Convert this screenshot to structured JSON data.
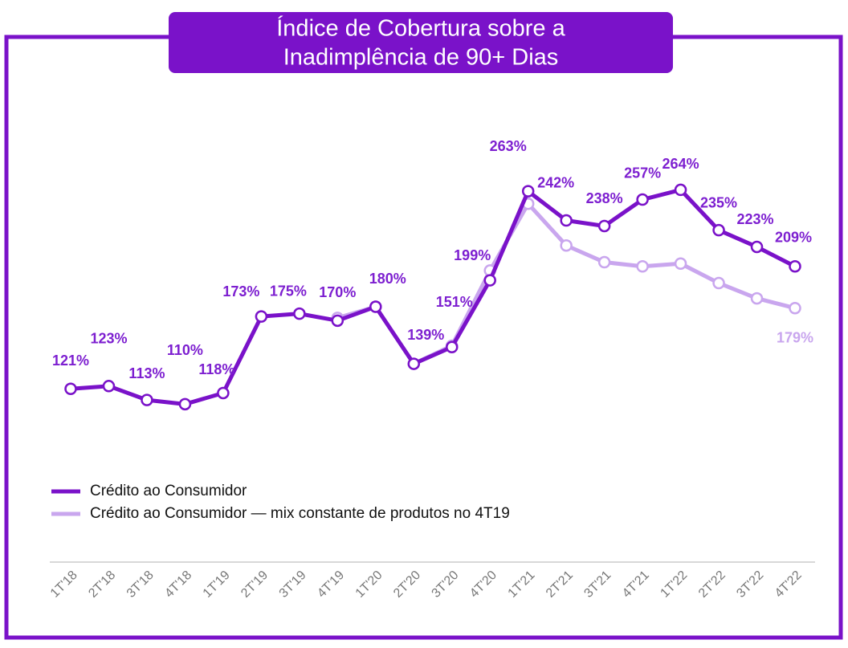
{
  "chart_data": {
    "type": "line",
    "title": [
      "Índice de Cobertura sobre a",
      "Inadimplência de 90+ Dias"
    ],
    "categories": [
      "1T'18",
      "2T'18",
      "3T'18",
      "4T'18",
      "1T'19",
      "2T'19",
      "3T'19",
      "4T'19",
      "1T'20",
      "2T'20",
      "3T'20",
      "4T'20",
      "1T'21",
      "2T'21",
      "3T'21",
      "4T'21",
      "1T'22",
      "2T'22",
      "3T'22",
      "4T'22"
    ],
    "series": [
      {
        "name": "Crédito ao Consumidor — mix constante de produtos no 4T19",
        "color": "#c9a6ee",
        "values": [
          null,
          null,
          null,
          null,
          null,
          null,
          null,
          172,
          180,
          139,
          152,
          206,
          254,
          224,
          212,
          209,
          211,
          197,
          186,
          179
        ],
        "value_labels": [
          null,
          null,
          null,
          null,
          null,
          null,
          null,
          null,
          null,
          null,
          null,
          null,
          null,
          null,
          null,
          null,
          null,
          null,
          null,
          "179%"
        ]
      },
      {
        "name": "Crédito ao Consumidor",
        "color": "#7a12c9",
        "values": [
          121,
          123,
          113,
          110,
          118,
          173,
          175,
          170,
          180,
          139,
          151,
          199,
          263,
          242,
          238,
          257,
          264,
          235,
          223,
          209
        ],
        "value_labels": [
          "121%",
          "123%",
          "113%",
          "110%",
          "118%",
          "173%",
          "175%",
          "170%",
          "180%",
          "139%",
          "151%",
          "199%",
          "263%",
          "242%",
          "238%",
          "257%",
          "264%",
          "235%",
          "223%",
          "209%"
        ]
      }
    ],
    "ylim": [
      0,
      300
    ]
  }
}
